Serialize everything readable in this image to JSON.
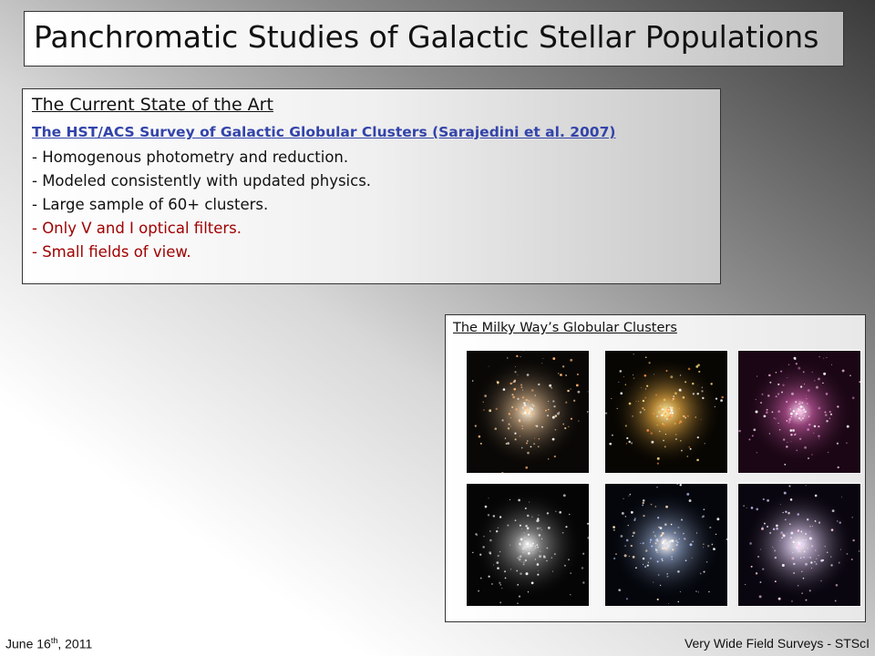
{
  "header": {
    "title": "Panchromatic Studies of Galactic Stellar Populations"
  },
  "state_of_art": {
    "heading": "The Current State of the Art",
    "link": "The HST/ACS Survey of Galactic Globular Clusters (Sarajedini et al. 2007)",
    "bullets": [
      {
        "text": "- Homogenous photometry and reduction.",
        "color": "#111111"
      },
      {
        "text": "- Modeled consistently with updated physics.",
        "color": "#111111"
      },
      {
        "text": "- Large sample of 60+ clusters.",
        "color": "#111111"
      },
      {
        "text": "- Only V and I optical filters.",
        "color": "#a00000"
      },
      {
        "text": "- Small fields of view.",
        "color": "#a00000"
      }
    ]
  },
  "clusters_panel": {
    "title": "The Milky Way’s Globular Clusters"
  },
  "footer": {
    "date": "June 16",
    "date_sup": "th",
    "date_year": ", 2011",
    "right": "Very Wide Field Surveys - STScI"
  }
}
